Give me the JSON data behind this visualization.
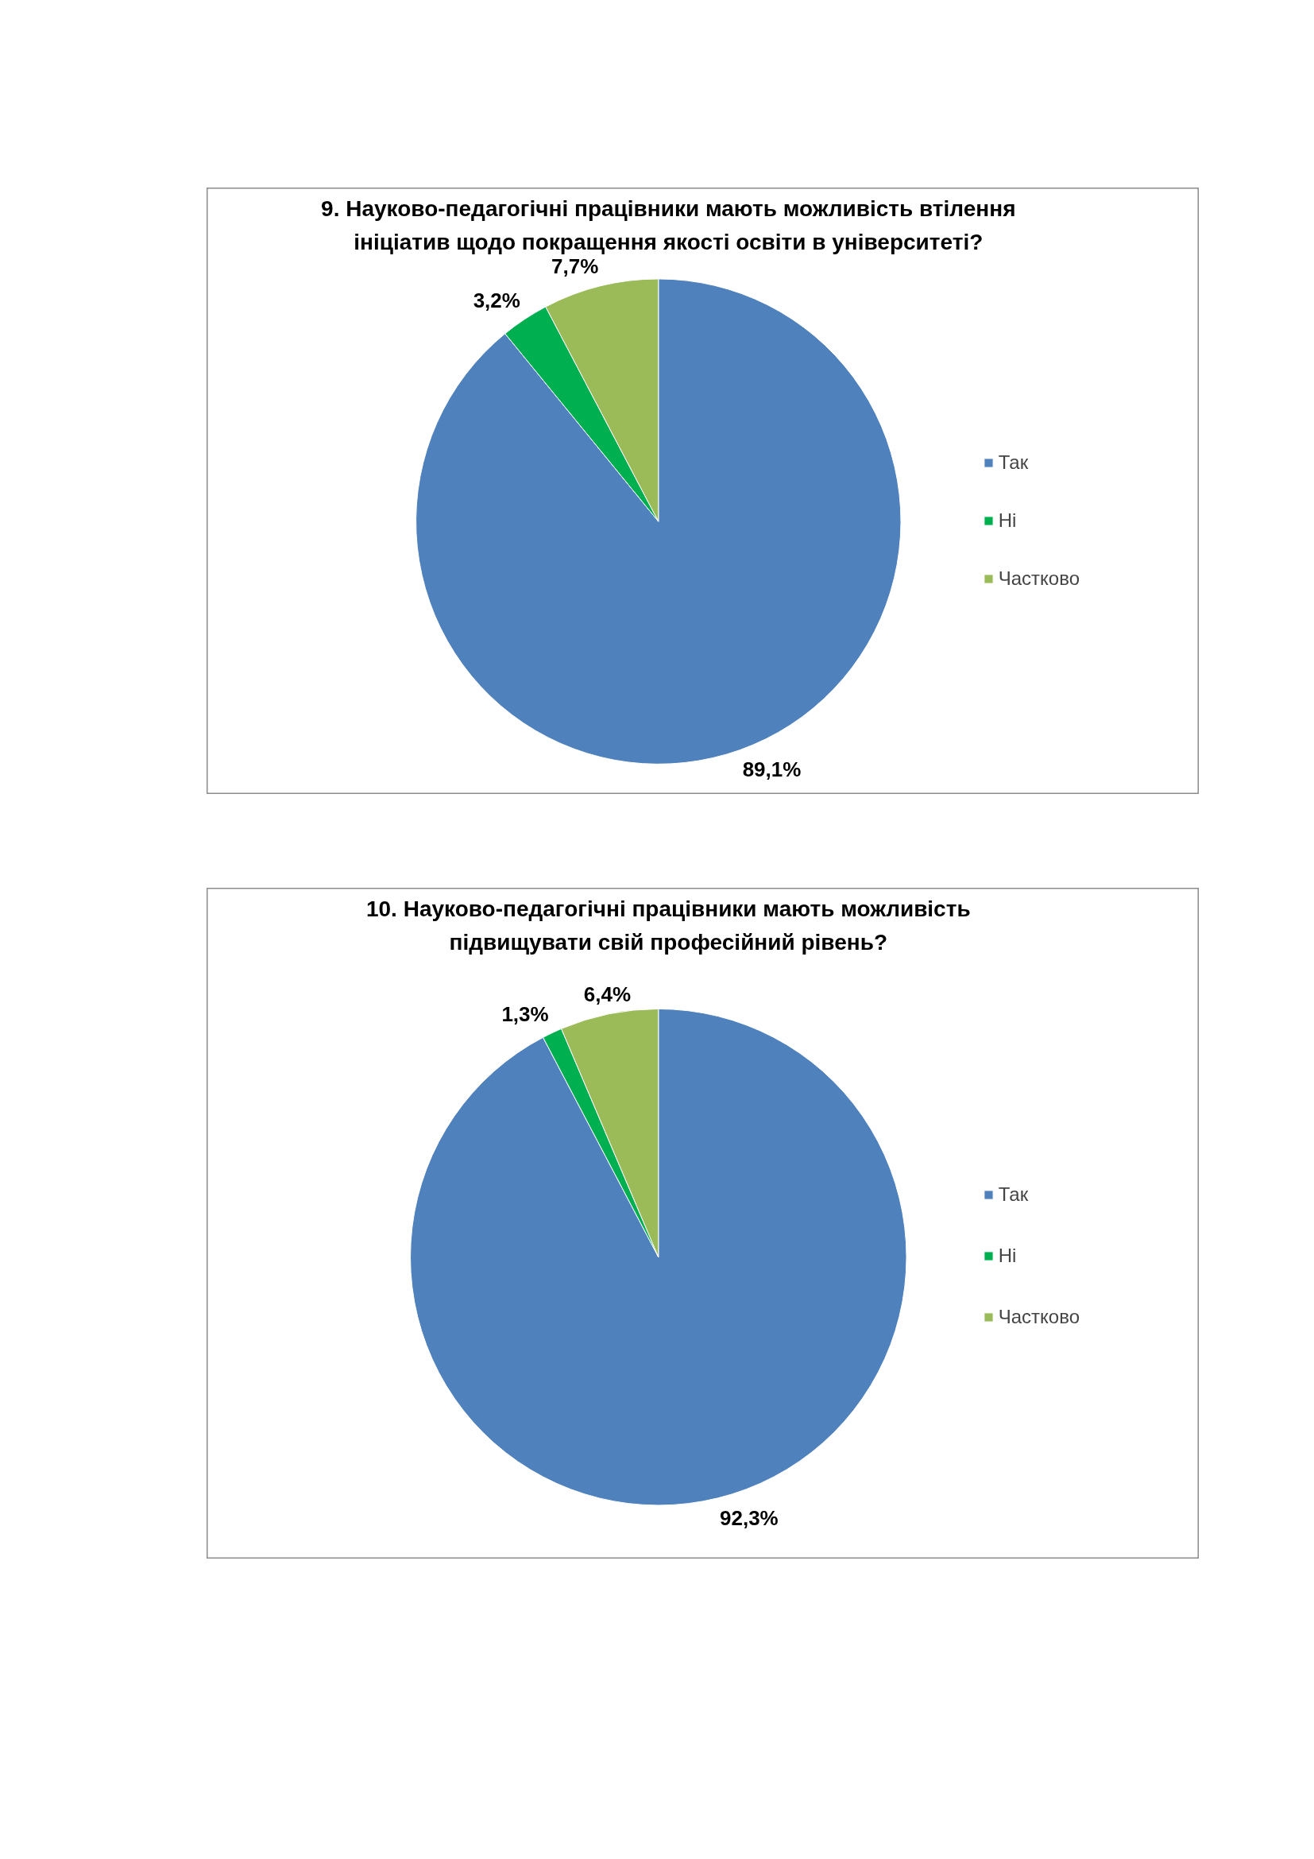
{
  "chart_data": [
    {
      "type": "pie",
      "title": "9. Науково-педагогічні працівники мають можливість втілення ініціатив щодо покращення якості освіти в університеті?",
      "categories": [
        "Так",
        "Ні",
        "Частково"
      ],
      "values": [
        89.1,
        3.2,
        7.7
      ],
      "colors": [
        "#4f81bd",
        "#00b050",
        "#9bbb59"
      ],
      "value_labels": [
        "89,1%",
        "3,2%",
        "7,7%"
      ],
      "legend": "right"
    },
    {
      "type": "pie",
      "title": "10. Науково-педагогічні працівники мають можливість підвищувати свій професійний рівень?",
      "categories": [
        "Так",
        "Ні",
        "Частково"
      ],
      "values": [
        92.3,
        1.3,
        6.4
      ],
      "colors": [
        "#4f81bd",
        "#00b050",
        "#9bbb59"
      ],
      "value_labels": [
        "92,3%",
        "1,3%",
        "6,4%"
      ],
      "legend": "right"
    }
  ]
}
